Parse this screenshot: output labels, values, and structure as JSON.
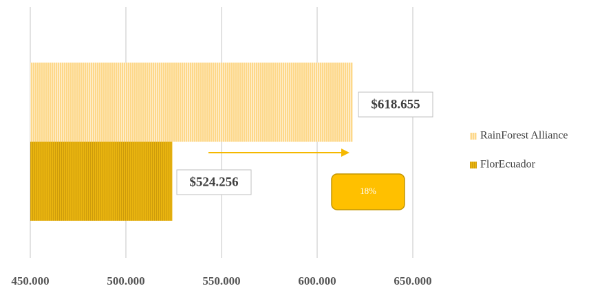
{
  "chart_data": {
    "type": "hbar",
    "series": [
      {
        "name": "RainForest Alliance",
        "color": "#fdd88a",
        "values": [
          618655
        ],
        "value_labels": [
          "$618.655"
        ]
      },
      {
        "name": "FlorEcuador",
        "color": "#e9b40f",
        "values": [
          524256
        ],
        "value_labels": [
          "$524.256"
        ]
      }
    ],
    "xlim": [
      450000,
      650000
    ],
    "xticks": [
      {
        "value": 450000,
        "label": "450.000"
      },
      {
        "value": 500000,
        "label": "500.000"
      },
      {
        "value": 550000,
        "label": "550.000"
      },
      {
        "value": 600000,
        "label": "600.000"
      },
      {
        "value": 650000,
        "label": "650.000"
      }
    ],
    "grid": true,
    "legend": "right",
    "annotations": [
      {
        "text": "18%"
      }
    ]
  }
}
